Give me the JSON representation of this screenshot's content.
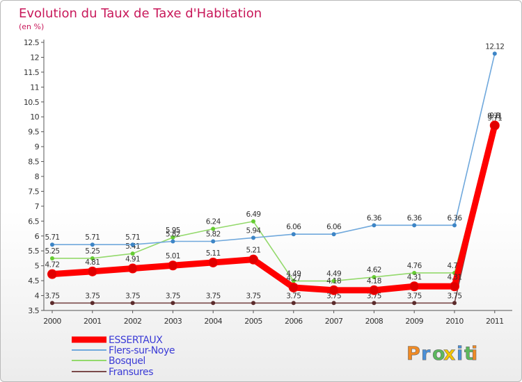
{
  "chart_data": {
    "type": "line",
    "title": "Evolution du Taux de Taxe d'Habitation",
    "subtitle": "(en %)",
    "x": [
      "2000",
      "2001",
      "2002",
      "2003",
      "2004",
      "2005",
      "2006",
      "2007",
      "2008",
      "2009",
      "2010",
      "2011"
    ],
    "ylim": [
      3.5,
      12.5
    ],
    "yticks": [
      "3.5",
      "4",
      "4.5",
      "5",
      "5.5",
      "6",
      "6.5",
      "7",
      "7.5",
      "8",
      "8.5",
      "9",
      "9.5",
      "10",
      "10.5",
      "11",
      "11.5",
      "12",
      "12.5"
    ],
    "grid": false,
    "legend_position": "bottom-left",
    "series": [
      {
        "name": "ESSERTAUX",
        "color": "#ff0000",
        "dot": "#e00000",
        "values": [
          4.72,
          4.81,
          4.91,
          5.01,
          5.11,
          5.21,
          4.27,
          4.18,
          4.18,
          4.31,
          4.31,
          9.71
        ],
        "labels": [
          "4.72",
          "4.81",
          "4.91",
          "5.01",
          "5.11",
          "5.21",
          "4.27",
          "4.18",
          "4.18",
          "4.31",
          "4.31",
          "9.71"
        ]
      },
      {
        "name": "Flers-sur-Noye",
        "color": "#6fa8dc",
        "dot": "#3d85c6",
        "values": [
          5.71,
          5.71,
          5.71,
          5.82,
          5.82,
          5.94,
          6.06,
          6.06,
          6.36,
          6.36,
          6.36,
          12.12
        ],
        "labels": [
          "5.71",
          "5.71",
          "5.71",
          "5.82",
          "5.82",
          "5.94",
          "6.06",
          "6.06",
          "6.36",
          "6.36",
          "6.36",
          "12.12"
        ]
      },
      {
        "name": "Bosquel",
        "color": "#93d96b",
        "dot": "#66cc33",
        "values": [
          5.25,
          5.25,
          5.41,
          5.95,
          6.24,
          6.49,
          4.49,
          4.49,
          4.62,
          4.76,
          4.76,
          9.8
        ],
        "labels": [
          "5.25",
          "5.25",
          "5.41",
          "5.95",
          "6.24",
          "6.49",
          "4.49",
          "4.49",
          "4.62",
          "4.76",
          "4.76",
          "9.8"
        ]
      },
      {
        "name": "Fransures",
        "color": "#7a4a4a",
        "dot": "#5c2b2b",
        "values": [
          3.75,
          3.75,
          3.75,
          3.75,
          3.75,
          3.75,
          3.75,
          3.75,
          3.75,
          3.75,
          3.75,
          9.71
        ],
        "labels": [
          "3.75",
          "3.75",
          "3.75",
          "3.75",
          "3.75",
          "3.75",
          "3.75",
          "3.75",
          "3.75",
          "3.75",
          "3.75",
          "9.71"
        ]
      }
    ]
  },
  "brand": {
    "letters": [
      "P",
      "r",
      "o",
      "x",
      "i",
      "t",
      "i"
    ],
    "colors": [
      "#f08a24",
      "#4a90d9",
      "#5cb85c",
      "#f5c400",
      "#4a90d9",
      "#5cb85c",
      "#f08a24"
    ]
  }
}
